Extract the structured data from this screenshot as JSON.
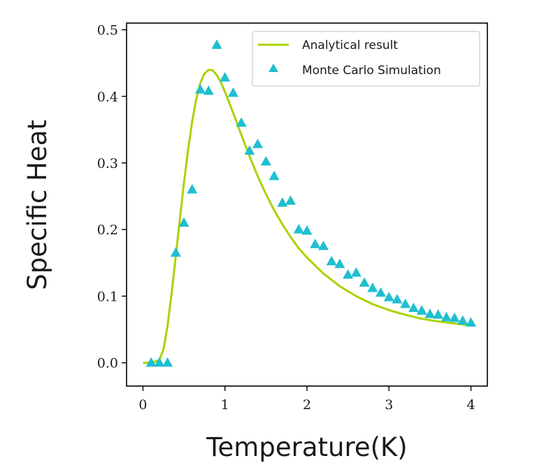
{
  "chart_data": {
    "type": "line",
    "xlabel": "Temperature(K)",
    "ylabel": "Specific Heat",
    "xlim": [
      -0.2,
      4.2
    ],
    "ylim": [
      -0.035,
      0.51
    ],
    "xticks": [
      0,
      1,
      2,
      3,
      4
    ],
    "xtick_labels": [
      "0",
      "1",
      "2",
      "3",
      "4"
    ],
    "yticks": [
      0.0,
      0.1,
      0.2,
      0.3,
      0.4,
      0.5
    ],
    "ytick_labels": [
      "0.0",
      "0.1",
      "0.2",
      "0.3",
      "0.4",
      "0.5"
    ],
    "grid": false,
    "legend_position": "top-right",
    "series": [
      {
        "name": "Analytical result",
        "kind": "line",
        "color": "#a8d400",
        "x": [
          0.0,
          0.1,
          0.2,
          0.25,
          0.3,
          0.35,
          0.4,
          0.45,
          0.5,
          0.55,
          0.6,
          0.65,
          0.7,
          0.75,
          0.8,
          0.85,
          0.9,
          0.95,
          1.0,
          1.1,
          1.2,
          1.3,
          1.4,
          1.5,
          1.6,
          1.7,
          1.8,
          1.9,
          2.0,
          2.2,
          2.4,
          2.6,
          2.8,
          3.0,
          3.2,
          3.4,
          3.6,
          3.8,
          4.0
        ],
        "y": [
          0.0,
          0.0,
          0.004,
          0.02,
          0.055,
          0.105,
          0.16,
          0.215,
          0.27,
          0.32,
          0.362,
          0.396,
          0.42,
          0.434,
          0.44,
          0.439,
          0.432,
          0.421,
          0.407,
          0.375,
          0.342,
          0.31,
          0.28,
          0.253,
          0.229,
          0.208,
          0.189,
          0.172,
          0.158,
          0.134,
          0.115,
          0.1,
          0.088,
          0.079,
          0.072,
          0.066,
          0.062,
          0.059,
          0.056
        ]
      },
      {
        "name": "Monte Carlo Simulation",
        "kind": "scatter",
        "marker": "triangle",
        "color": "#1fbfcf",
        "x": [
          0.1,
          0.2,
          0.3,
          0.4,
          0.5,
          0.6,
          0.7,
          0.8,
          0.9,
          1.0,
          1.1,
          1.2,
          1.3,
          1.4,
          1.5,
          1.6,
          1.7,
          1.8,
          1.9,
          2.0,
          2.1,
          2.2,
          2.3,
          2.4,
          2.5,
          2.6,
          2.7,
          2.8,
          2.9,
          3.0,
          3.1,
          3.2,
          3.3,
          3.4,
          3.5,
          3.6,
          3.7,
          3.8,
          3.9,
          4.0
        ],
        "y": [
          0.0,
          0.0,
          0.0,
          0.165,
          0.21,
          0.26,
          0.41,
          0.408,
          0.477,
          0.428,
          0.405,
          0.36,
          0.318,
          0.328,
          0.302,
          0.28,
          0.24,
          0.243,
          0.2,
          0.198,
          0.178,
          0.175,
          0.152,
          0.148,
          0.132,
          0.135,
          0.12,
          0.112,
          0.105,
          0.098,
          0.095,
          0.088,
          0.082,
          0.078,
          0.073,
          0.072,
          0.068,
          0.067,
          0.063,
          0.06
        ]
      }
    ]
  }
}
